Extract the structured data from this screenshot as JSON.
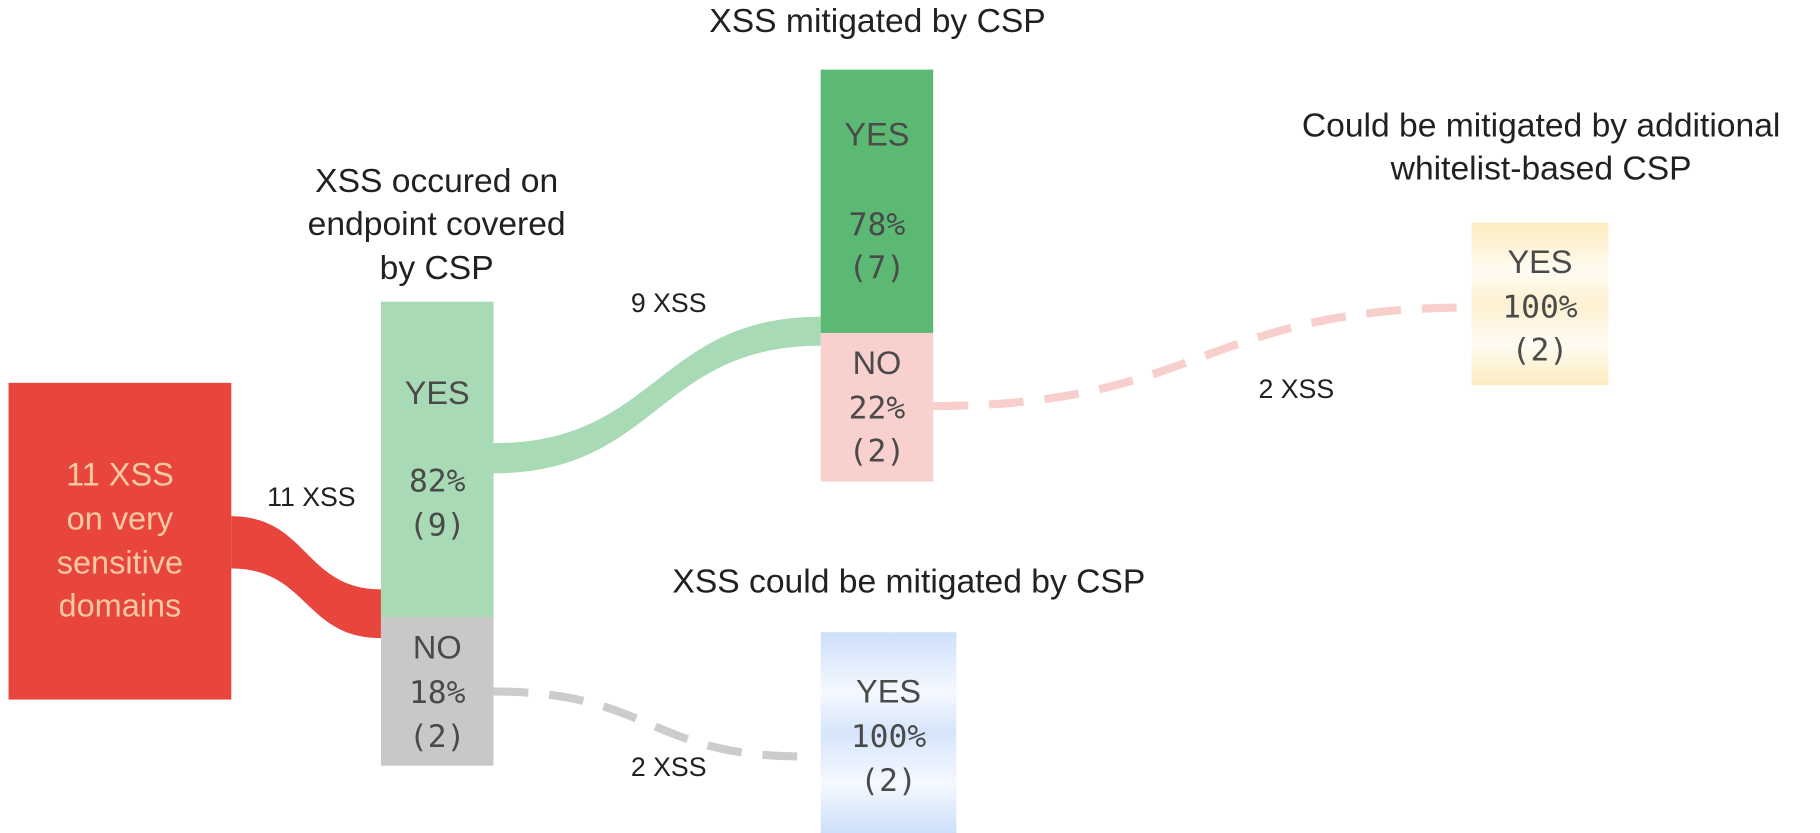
{
  "nodes": [
    {
      "lines": [
        "11 XSS",
        "on very",
        "sensitive",
        "domains"
      ]
    },
    {
      "title": [
        "XSS occured on",
        "endpoint covered",
        "by CSP"
      ],
      "lines": [
        "YES",
        "82%",
        "(9)"
      ]
    },
    {
      "lines": [
        "NO",
        "18%",
        "(2)"
      ]
    },
    {
      "title": [
        "XSS mitigated by CSP"
      ],
      "lines": [
        "YES",
        "78%",
        "(7)"
      ]
    },
    {
      "lines": [
        "NO",
        "22%",
        "(2)"
      ]
    },
    {
      "title": [
        "Could be mitigated by additional",
        "whitelist-based CSP"
      ],
      "lines": [
        "YES",
        "100%",
        "(2)"
      ]
    },
    {
      "title": [
        "XSS could be mitigated by CSP"
      ],
      "lines": [
        "YES",
        "100%",
        "(2)"
      ]
    }
  ],
  "links": [
    {
      "label": "11 XSS"
    },
    {
      "label": "9 XSS"
    },
    {
      "label": "2 XSS"
    },
    {
      "label": "2 XSS"
    }
  ]
}
